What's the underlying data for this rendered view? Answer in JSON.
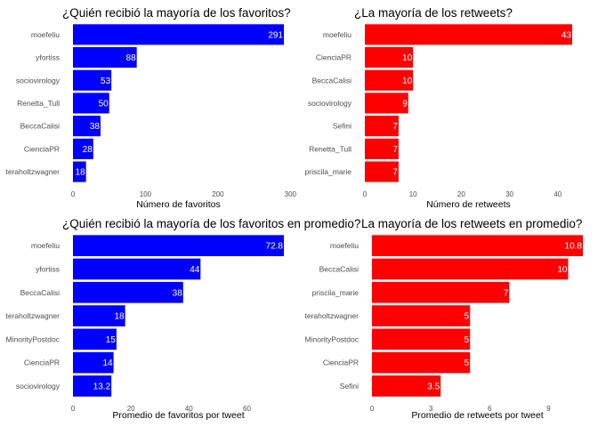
{
  "chart_data": [
    {
      "type": "bar",
      "orientation": "horizontal",
      "title": "¿Quién recibió la mayoría de los favoritos?",
      "xlabel": "Número de favoritos",
      "ylabel": "",
      "categories": [
        "moefeliu",
        "yfortiss",
        "sociovirology",
        "Renetta_Tull",
        "BeccaCalisi",
        "CienciaPR",
        "teraholtzwagner"
      ],
      "values": [
        291,
        88,
        53,
        50,
        38,
        28,
        18
      ],
      "value_labels": [
        "291",
        "88",
        "53",
        "50",
        "38",
        "28",
        "18"
      ],
      "xticks": [
        0,
        100,
        200,
        300
      ],
      "xticklabels": [
        "0",
        "100",
        "200",
        "300"
      ],
      "xlim": [
        0,
        291
      ],
      "color": "#0000ff"
    },
    {
      "type": "bar",
      "orientation": "horizontal",
      "title": "¿La mayoría de los retweets?",
      "xlabel": "Número de retweets",
      "ylabel": "",
      "categories": [
        "moefeliu",
        "CienciaPR",
        "BeccaCalisi",
        "sociovirology",
        "Sefini",
        "Renetta_Tull",
        "priscila_marie"
      ],
      "values": [
        43,
        10,
        10,
        9,
        7,
        7,
        7
      ],
      "value_labels": [
        "43",
        "10",
        "10",
        "9",
        "7",
        "7",
        "7"
      ],
      "xticks": [
        0,
        10,
        20,
        30,
        40
      ],
      "xticklabels": [
        "0",
        "10",
        "20",
        "30",
        "40"
      ],
      "xlim": [
        0,
        43
      ],
      "color": "#ff0000"
    },
    {
      "type": "bar",
      "orientation": "horizontal",
      "title": "¿Quién recibió la mayoría de los favoritos en promedio?",
      "xlabel": "Promedio de favoritos por tweet",
      "ylabel": "",
      "categories": [
        "moefeliu",
        "yfortiss",
        "BeccaCalisi",
        "teraholtzwagner",
        "MinorityPostdoc",
        "CienciaPR",
        "sociovirology"
      ],
      "values": [
        72.75,
        44,
        38,
        18,
        15,
        14,
        13.25
      ],
      "value_labels": [
        "72.8",
        "44",
        "38",
        "18",
        "15",
        "14",
        "13.2"
      ],
      "xticks": [
        0,
        20,
        40,
        60
      ],
      "xticklabels": [
        "0",
        "20",
        "40",
        "60"
      ],
      "xlim": [
        0,
        72.75
      ],
      "color": "#0000ff"
    },
    {
      "type": "bar",
      "orientation": "horizontal",
      "title": "La mayoría de los retweets en promedio?",
      "xlabel": "Promedio de retweets por tweet",
      "ylabel": "",
      "categories": [
        "moefeliu",
        "BeccaCalisi",
        "priscila_marie",
        "teraholtzwagner",
        "MinorityPostdoc",
        "CienciaPR",
        "Sefini"
      ],
      "values": [
        10.75,
        10,
        7,
        5,
        5,
        5,
        3.5
      ],
      "value_labels": [
        "10.8",
        "10",
        "7",
        "5",
        "5",
        "5",
        "3.5"
      ],
      "xticks": [
        0,
        3,
        6,
        9
      ],
      "xticklabels": [
        "0",
        "3",
        "6",
        "9"
      ],
      "xlim": [
        0,
        10.75
      ],
      "color": "#ff0000"
    }
  ]
}
